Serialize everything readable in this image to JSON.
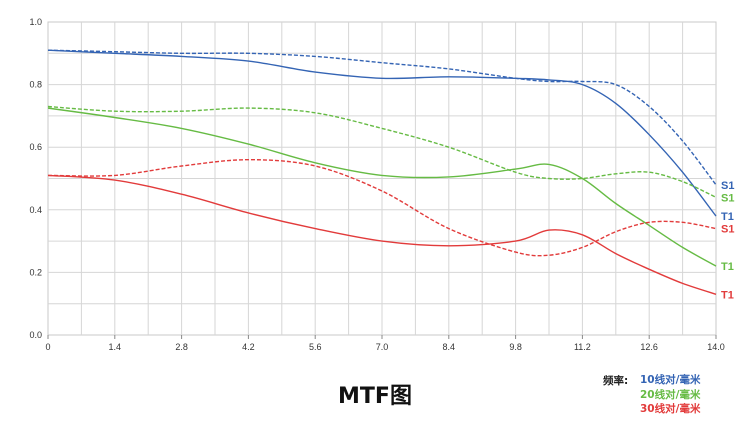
{
  "chart_data": {
    "type": "line",
    "title": "MTF图",
    "xlim": [
      0,
      14
    ],
    "ylim": [
      0,
      1
    ],
    "xticks": [
      "0",
      "1.4",
      "2.8",
      "4.2",
      "5.6",
      "7.0",
      "8.4",
      "9.8",
      "11.2",
      "12.6",
      "14.0"
    ],
    "yticks": [
      "0.0",
      "0.2",
      "0.4",
      "0.6",
      "0.8",
      "1.0"
    ],
    "grid": true,
    "legend_position": "bottom-right",
    "legend": {
      "header": "频率:",
      "entries": [
        {
          "label": "10线对/毫米",
          "color": "#3464b4"
        },
        {
          "label": "20线对/毫米",
          "color": "#66bb44"
        },
        {
          "label": "30线对/毫米",
          "color": "#e23b3b"
        }
      ]
    },
    "series": [
      {
        "freq": "10",
        "kind": "S",
        "color": "#3464b4",
        "dashed": true,
        "end_label": "S1",
        "x": [
          0,
          1.4,
          2.8,
          4.2,
          5.6,
          7.0,
          8.4,
          9.8,
          10.5,
          11.2,
          11.9,
          12.6,
          13.3,
          14.0
        ],
        "y": [
          0.91,
          0.905,
          0.9,
          0.9,
          0.89,
          0.87,
          0.85,
          0.82,
          0.81,
          0.81,
          0.8,
          0.73,
          0.62,
          0.48
        ]
      },
      {
        "freq": "10",
        "kind": "T",
        "color": "#3464b4",
        "dashed": false,
        "end_label": "T1",
        "x": [
          0,
          1.4,
          2.8,
          4.2,
          5.6,
          7.0,
          8.4,
          9.8,
          10.5,
          11.2,
          11.9,
          12.6,
          13.3,
          14.0
        ],
        "y": [
          0.91,
          0.9,
          0.89,
          0.875,
          0.84,
          0.82,
          0.825,
          0.82,
          0.815,
          0.8,
          0.74,
          0.64,
          0.52,
          0.38
        ]
      },
      {
        "freq": "20",
        "kind": "S",
        "color": "#66bb44",
        "dashed": true,
        "end_label": "S1",
        "x": [
          0,
          1.4,
          2.8,
          4.2,
          5.6,
          7.0,
          8.4,
          9.8,
          10.5,
          11.2,
          11.9,
          12.6,
          13.3,
          14.0
        ],
        "y": [
          0.73,
          0.715,
          0.715,
          0.725,
          0.71,
          0.66,
          0.6,
          0.52,
          0.5,
          0.5,
          0.515,
          0.52,
          0.49,
          0.44
        ]
      },
      {
        "freq": "20",
        "kind": "T",
        "color": "#66bb44",
        "dashed": false,
        "end_label": "T1",
        "x": [
          0,
          1.4,
          2.8,
          4.2,
          5.6,
          7.0,
          8.4,
          9.8,
          10.5,
          11.2,
          11.9,
          12.6,
          13.3,
          14.0
        ],
        "y": [
          0.725,
          0.695,
          0.66,
          0.61,
          0.55,
          0.51,
          0.505,
          0.53,
          0.545,
          0.5,
          0.42,
          0.35,
          0.28,
          0.22
        ]
      },
      {
        "freq": "30",
        "kind": "S",
        "color": "#e23b3b",
        "dashed": true,
        "end_label": "S1",
        "x": [
          0,
          1.4,
          2.8,
          4.2,
          5.6,
          7.0,
          8.4,
          9.8,
          10.5,
          11.2,
          11.9,
          12.6,
          13.3,
          14.0
        ],
        "y": [
          0.51,
          0.51,
          0.54,
          0.56,
          0.54,
          0.46,
          0.34,
          0.265,
          0.255,
          0.28,
          0.33,
          0.36,
          0.36,
          0.34
        ]
      },
      {
        "freq": "30",
        "kind": "T",
        "color": "#e23b3b",
        "dashed": false,
        "end_label": "T1",
        "x": [
          0,
          1.4,
          2.8,
          4.2,
          5.6,
          7.0,
          8.4,
          9.8,
          10.5,
          11.2,
          11.9,
          12.6,
          13.3,
          14.0
        ],
        "y": [
          0.51,
          0.495,
          0.45,
          0.39,
          0.34,
          0.3,
          0.285,
          0.3,
          0.335,
          0.32,
          0.26,
          0.21,
          0.165,
          0.13
        ]
      }
    ]
  }
}
